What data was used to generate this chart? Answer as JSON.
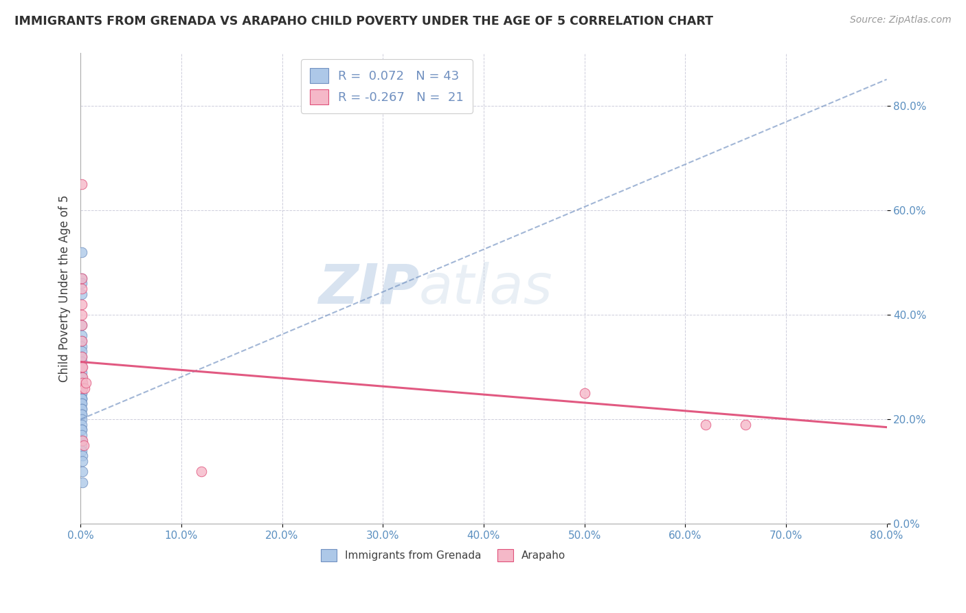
{
  "title": "IMMIGRANTS FROM GRENADA VS ARAPAHO CHILD POVERTY UNDER THE AGE OF 5 CORRELATION CHART",
  "source": "Source: ZipAtlas.com",
  "ylabel": "Child Poverty Under the Age of 5",
  "watermark_zip": "ZIP",
  "watermark_atlas": "atlas",
  "legend_r1": "R =  0.072",
  "legend_n1": "N = 43",
  "legend_r2": "R = -0.267",
  "legend_n2": "N =  21",
  "blue_color": "#adc8e8",
  "pink_color": "#f5b8c8",
  "trendline_blue_color": "#7090c0",
  "trendline_pink_color": "#e0507a",
  "grid_color": "#c8c8d8",
  "title_color": "#303030",
  "axis_tick_color": "#5a8fc0",
  "blue_scatter": [
    [
      0.001,
      0.52
    ],
    [
      0.001,
      0.47
    ],
    [
      0.001,
      0.46
    ],
    [
      0.001,
      0.44
    ],
    [
      0.001,
      0.38
    ],
    [
      0.001,
      0.36
    ],
    [
      0.001,
      0.35
    ],
    [
      0.001,
      0.34
    ],
    [
      0.001,
      0.33
    ],
    [
      0.001,
      0.32
    ],
    [
      0.001,
      0.31
    ],
    [
      0.001,
      0.3
    ],
    [
      0.001,
      0.3
    ],
    [
      0.001,
      0.29
    ],
    [
      0.001,
      0.28
    ],
    [
      0.001,
      0.28
    ],
    [
      0.001,
      0.27
    ],
    [
      0.001,
      0.27
    ],
    [
      0.001,
      0.26
    ],
    [
      0.001,
      0.26
    ],
    [
      0.001,
      0.25
    ],
    [
      0.001,
      0.25
    ],
    [
      0.001,
      0.24
    ],
    [
      0.001,
      0.24
    ],
    [
      0.001,
      0.24
    ],
    [
      0.001,
      0.23
    ],
    [
      0.001,
      0.23
    ],
    [
      0.001,
      0.22
    ],
    [
      0.001,
      0.22
    ],
    [
      0.001,
      0.21
    ],
    [
      0.001,
      0.21
    ],
    [
      0.001,
      0.2
    ],
    [
      0.001,
      0.19
    ],
    [
      0.001,
      0.18
    ],
    [
      0.001,
      0.18
    ],
    [
      0.001,
      0.17
    ],
    [
      0.001,
      0.16
    ],
    [
      0.001,
      0.15
    ],
    [
      0.001,
      0.14
    ],
    [
      0.002,
      0.13
    ],
    [
      0.002,
      0.12
    ],
    [
      0.002,
      0.1
    ],
    [
      0.002,
      0.08
    ]
  ],
  "pink_scatter": [
    [
      0.001,
      0.65
    ],
    [
      0.001,
      0.47
    ],
    [
      0.001,
      0.45
    ],
    [
      0.001,
      0.42
    ],
    [
      0.001,
      0.4
    ],
    [
      0.001,
      0.38
    ],
    [
      0.001,
      0.35
    ],
    [
      0.001,
      0.32
    ],
    [
      0.001,
      0.3
    ],
    [
      0.002,
      0.3
    ],
    [
      0.002,
      0.28
    ],
    [
      0.002,
      0.27
    ],
    [
      0.002,
      0.26
    ],
    [
      0.002,
      0.16
    ],
    [
      0.003,
      0.15
    ],
    [
      0.004,
      0.26
    ],
    [
      0.005,
      0.27
    ],
    [
      0.5,
      0.25
    ],
    [
      0.62,
      0.19
    ],
    [
      0.66,
      0.19
    ],
    [
      0.12,
      0.1
    ]
  ],
  "blue_trend_x": [
    0.0,
    0.8
  ],
  "blue_trend_y": [
    0.2,
    0.85
  ],
  "pink_trend_x": [
    0.0,
    0.8
  ],
  "pink_trend_y": [
    0.31,
    0.185
  ],
  "xlim": [
    0.0,
    0.8
  ],
  "ylim": [
    0.0,
    0.9
  ],
  "x_ticks": [
    0.0,
    0.1,
    0.2,
    0.3,
    0.4,
    0.5,
    0.6,
    0.7,
    0.8
  ],
  "y_ticks": [
    0.0,
    0.2,
    0.4,
    0.6,
    0.8
  ]
}
